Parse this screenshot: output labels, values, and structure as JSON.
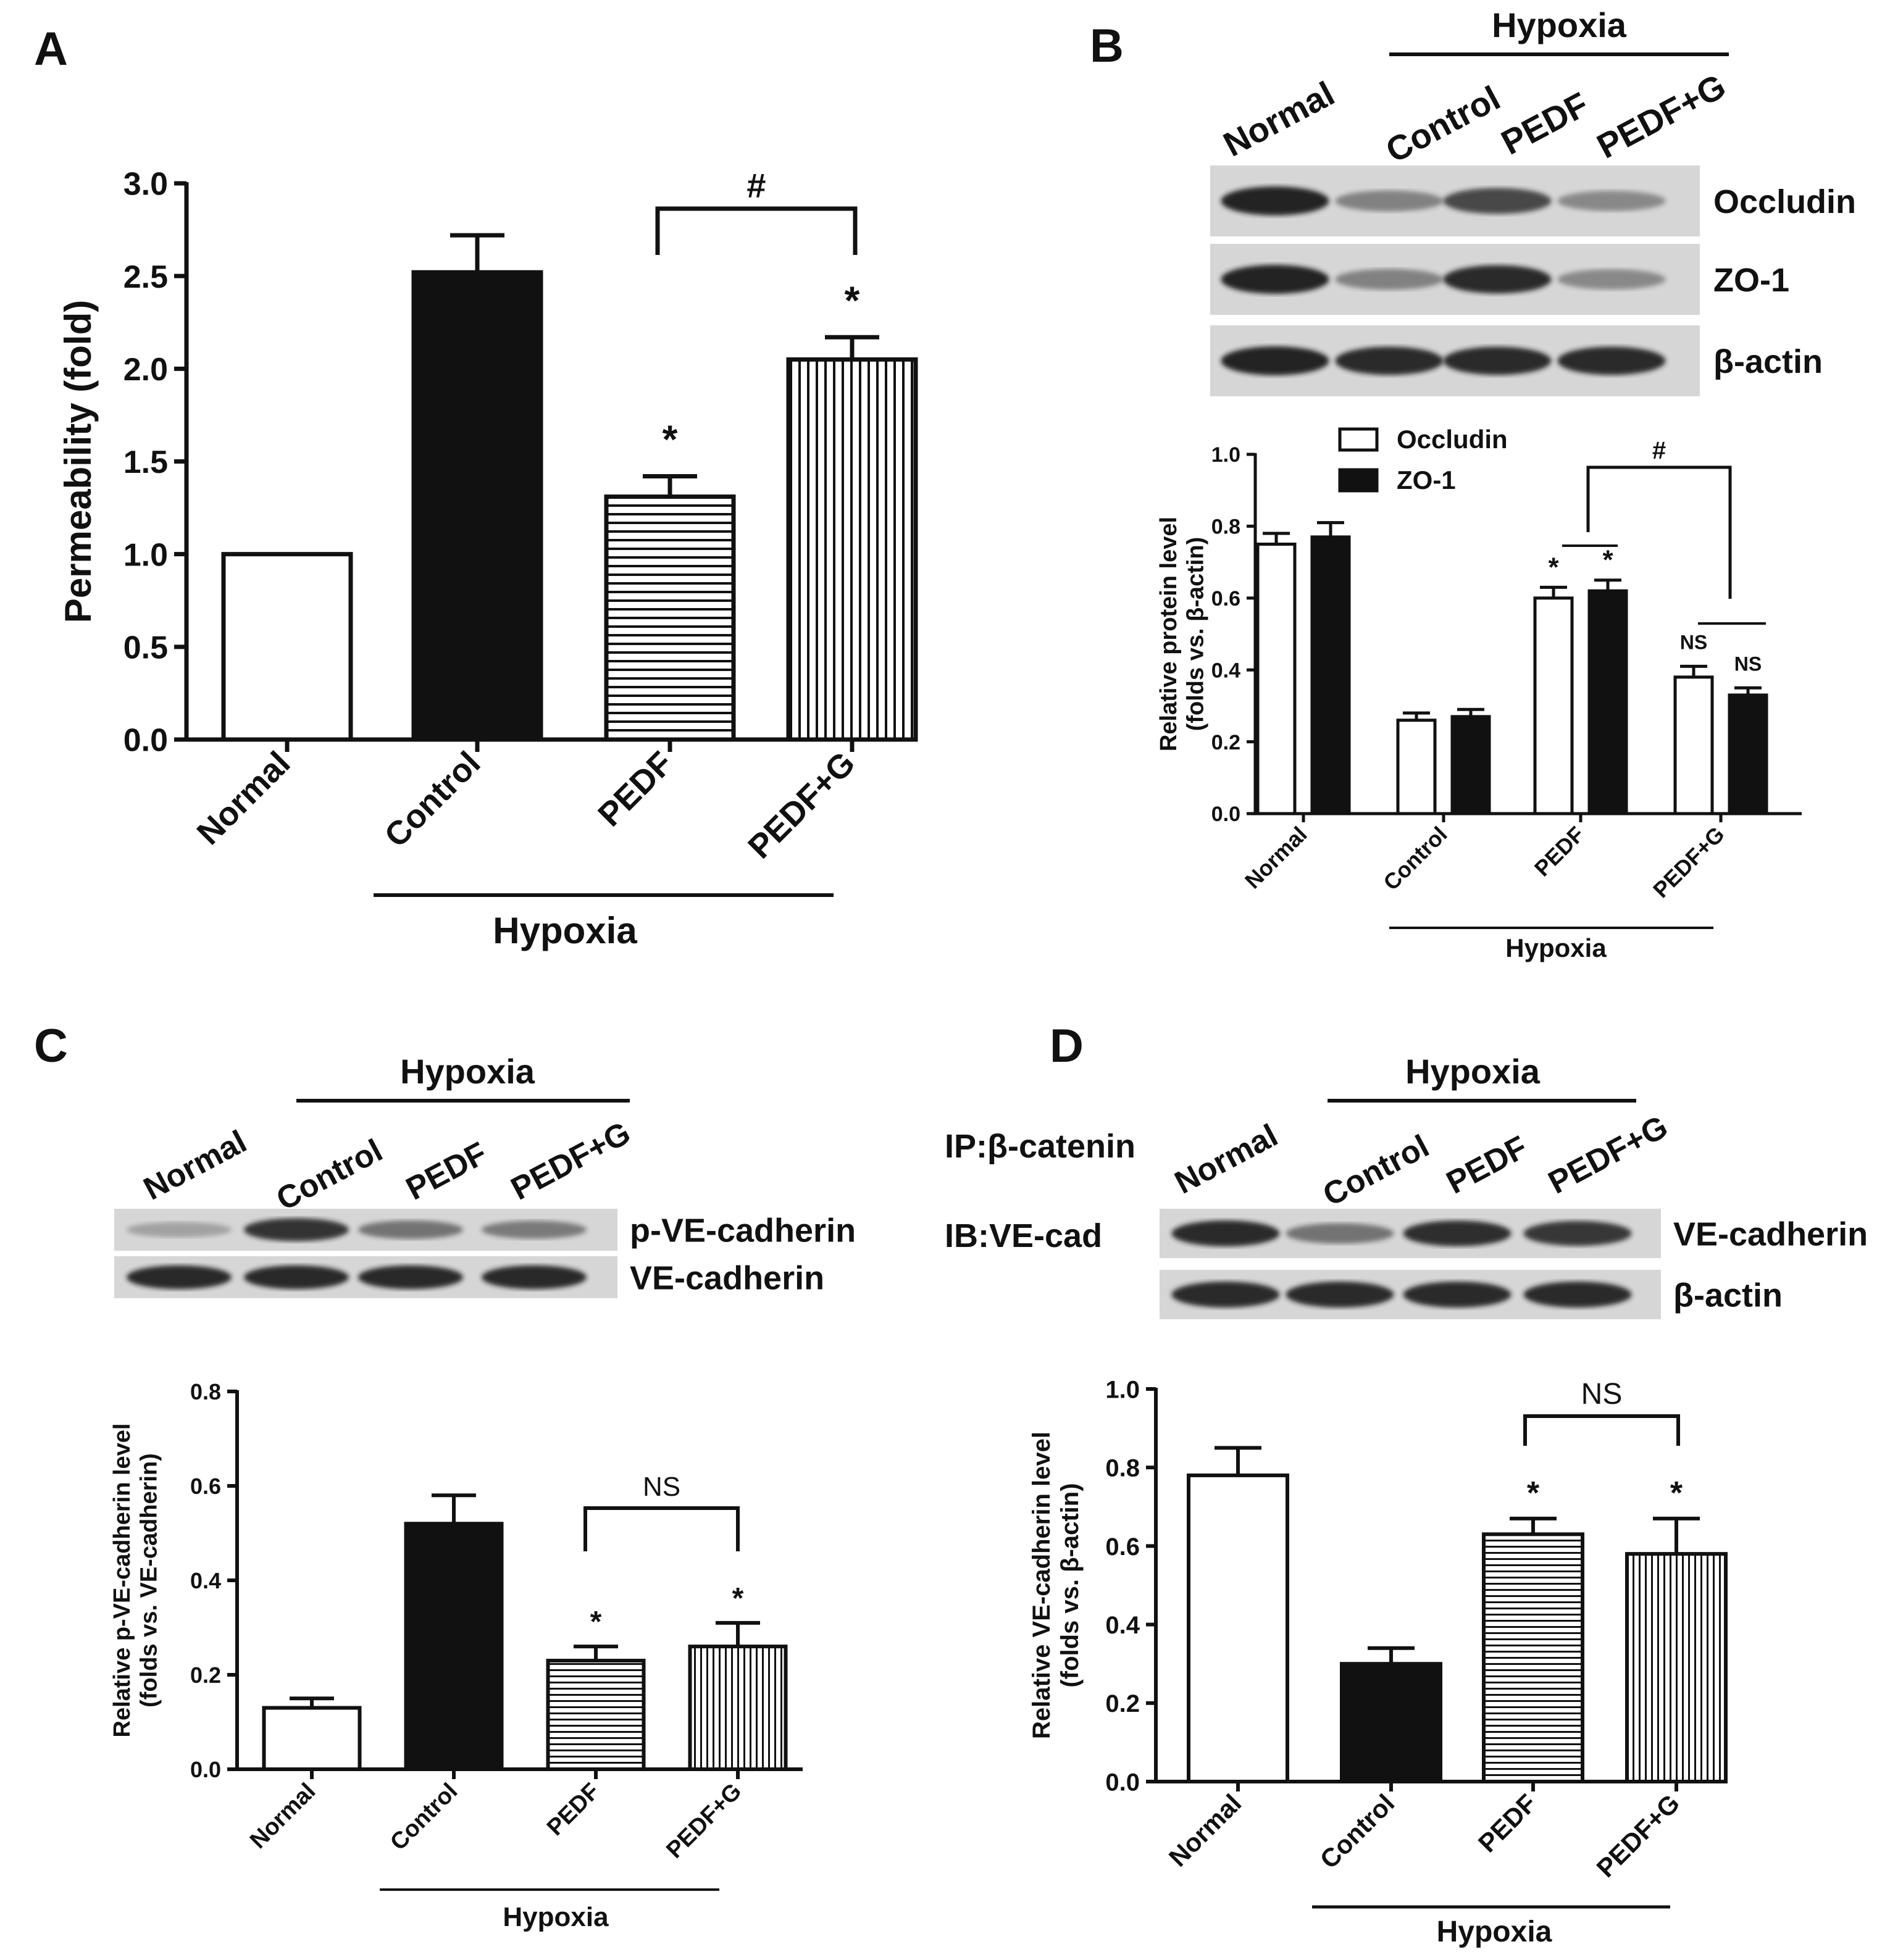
{
  "panels": {
    "A": {
      "letter": "A",
      "group_label": "Hypoxia"
    },
    "B": {
      "letter": "B",
      "group_label": "Hypoxia",
      "blot": {
        "lanes": [
          "Normal",
          "Control",
          "PEDF",
          "PEDF+G"
        ],
        "rows": [
          "Occludin",
          "ZO-1",
          "β-actin"
        ],
        "intensity": [
          [
            0.95,
            0.35,
            0.72,
            0.3
          ],
          [
            0.95,
            0.35,
            0.9,
            0.3
          ],
          [
            0.95,
            0.9,
            0.9,
            0.9
          ]
        ]
      },
      "group_label_chart": "Hypoxia"
    },
    "C": {
      "letter": "C",
      "group_label": "Hypoxia",
      "blot": {
        "lanes": [
          "Normal",
          "Control",
          "PEDF",
          "PEDF+G"
        ],
        "rows": [
          "p-VE-cadherin",
          "VE-cadherin"
        ],
        "intensity": [
          [
            0.15,
            0.85,
            0.45,
            0.4
          ],
          [
            0.92,
            0.92,
            0.92,
            0.92
          ]
        ]
      },
      "group_label_chart": "Hypoxia"
    },
    "D": {
      "letter": "D",
      "group_label": "Hypoxia",
      "ip_label": "IP:β-catenin",
      "ib_label": "IB:VE-cad",
      "blot": {
        "lanes": [
          "Normal",
          "Control",
          "PEDF",
          "PEDF+G"
        ],
        "rows": [
          "VE-cadherin",
          "β-actin"
        ],
        "intensity": [
          [
            0.9,
            0.45,
            0.88,
            0.82
          ],
          [
            0.9,
            0.9,
            0.9,
            0.9
          ]
        ]
      },
      "group_label_chart": "Hypoxia"
    }
  },
  "colors": {
    "ink": "#111111",
    "blot_bg": "#d6d6d6",
    "band": "#1a1a1a"
  },
  "chart_data": [
    {
      "id": "A",
      "type": "bar",
      "ylabel": "Permeability (fold)",
      "categories": [
        "Normal",
        "Control",
        "PEDF",
        "PEDF+G"
      ],
      "values": [
        1.0,
        2.52,
        1.31,
        2.05
      ],
      "errors": [
        0.0,
        0.2,
        0.11,
        0.12
      ],
      "patterns": [
        "open",
        "solid",
        "hlines",
        "vlines"
      ],
      "ylim": [
        0,
        3.0
      ],
      "yticks": [
        "0.0",
        "0.5",
        "1.0",
        "1.5",
        "2.0",
        "2.5",
        "3.0"
      ],
      "stars": [
        "",
        "",
        "*",
        "*"
      ],
      "bracket": {
        "from": 2,
        "to": 3,
        "label": "#"
      }
    },
    {
      "id": "B",
      "type": "bar",
      "ylabel": "Relative protein level",
      "ylabel2": "(folds vs. β-actin)",
      "categories": [
        "Normal",
        "Control",
        "PEDF",
        "PEDF+G"
      ],
      "series": [
        {
          "name": "Occludin",
          "values": [
            0.75,
            0.26,
            0.6,
            0.38
          ],
          "errors": [
            0.03,
            0.02,
            0.03,
            0.03
          ],
          "stars": [
            "",
            "",
            "*",
            "NS"
          ]
        },
        {
          "name": "ZO-1",
          "values": [
            0.77,
            0.27,
            0.62,
            0.33
          ],
          "errors": [
            0.04,
            0.02,
            0.03,
            0.02
          ],
          "stars": [
            "",
            "",
            "*",
            "NS"
          ]
        }
      ],
      "ylim": [
        0,
        1.0
      ],
      "yticks": [
        "0.0",
        "0.2",
        "0.4",
        "0.6",
        "0.8",
        "1.0"
      ],
      "bracket": {
        "from": 2,
        "to": 3,
        "label": "#"
      },
      "legend": "top-left"
    },
    {
      "id": "C",
      "type": "bar",
      "ylabel": "Relative p-VE-cadherin level",
      "ylabel2": "(folds vs. VE-cadherin)",
      "categories": [
        "Normal",
        "Control",
        "PEDF",
        "PEDF+G"
      ],
      "values": [
        0.13,
        0.52,
        0.23,
        0.26
      ],
      "errors": [
        0.02,
        0.06,
        0.03,
        0.05
      ],
      "patterns": [
        "open",
        "solid",
        "hlines",
        "vlines"
      ],
      "ylim": [
        0,
        0.8
      ],
      "yticks": [
        "0.0",
        "0.2",
        "0.4",
        "0.6",
        "0.8"
      ],
      "stars": [
        "",
        "",
        "*",
        "*"
      ],
      "bracket": {
        "from": 2,
        "to": 3,
        "label": "NS"
      }
    },
    {
      "id": "D",
      "type": "bar",
      "ylabel": "Relative VE-cadherin level",
      "ylabel2": "(folds vs. β-actin)",
      "categories": [
        "Normal",
        "Control",
        "PEDF",
        "PEDF+G"
      ],
      "values": [
        0.78,
        0.3,
        0.63,
        0.58
      ],
      "errors": [
        0.07,
        0.04,
        0.04,
        0.09
      ],
      "patterns": [
        "open",
        "solid",
        "hlines",
        "vlines"
      ],
      "ylim": [
        0,
        1.0
      ],
      "yticks": [
        "0.0",
        "0.2",
        "0.4",
        "0.6",
        "0.8",
        "1.0"
      ],
      "stars": [
        "",
        "",
        "*",
        "*"
      ],
      "bracket": {
        "from": 2,
        "to": 3,
        "label": "NS"
      }
    }
  ]
}
